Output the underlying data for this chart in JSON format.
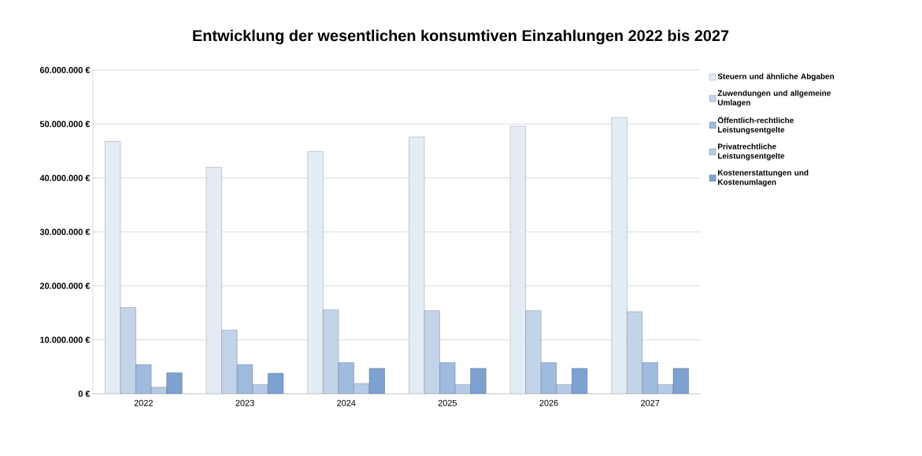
{
  "chart_data": {
    "type": "bar",
    "title": "Entwicklung der wesentlichen konsumtiven Einzahlungen 2022 bis 2027",
    "categories": [
      "2022",
      "2023",
      "2024",
      "2025",
      "2026",
      "2027"
    ],
    "series": [
      {
        "name": "Steuern und ähnliche Abgaben",
        "color": "#e4ecf6",
        "values": [
          46800000,
          42000000,
          44900000,
          47600000,
          49600000,
          51200000
        ]
      },
      {
        "name": "Zuwendungen und allgemeine Umlagen",
        "color": "#c3d4ea",
        "values": [
          16000000,
          11800000,
          15600000,
          15400000,
          15400000,
          15200000
        ]
      },
      {
        "name": "Öffentlich-rechtliche Leistungsentgelte",
        "color": "#9fbbdf",
        "values": [
          5400000,
          5400000,
          5800000,
          5800000,
          5800000,
          5800000
        ]
      },
      {
        "name": "Privatrechtliche Leistungsentgelte",
        "color": "#b5cae6",
        "values": [
          1200000,
          1700000,
          1900000,
          1700000,
          1700000,
          1700000
        ]
      },
      {
        "name": "Kostenerstattungen und Kostenumlagen",
        "color": "#7da2d2",
        "values": [
          3900000,
          3800000,
          4700000,
          4700000,
          4700000,
          4700000
        ]
      }
    ],
    "ylim": [
      0,
      60000000
    ],
    "yticks": [
      {
        "value": 0,
        "label": "0 €"
      },
      {
        "value": 10000000,
        "label": "10.000.000 €"
      },
      {
        "value": 20000000,
        "label": "20.000.000 €"
      },
      {
        "value": 30000000,
        "label": "30.000.000 €"
      },
      {
        "value": 40000000,
        "label": "40.000.000 €"
      },
      {
        "value": 50000000,
        "label": "50.000.000 €"
      },
      {
        "value": 60000000,
        "label": "60.000.000 €"
      }
    ],
    "grid": "y",
    "legend": "right"
  }
}
